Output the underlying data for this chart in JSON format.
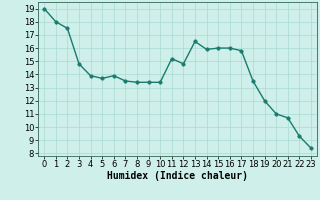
{
  "x": [
    0,
    1,
    2,
    3,
    4,
    5,
    6,
    7,
    8,
    9,
    10,
    11,
    12,
    13,
    14,
    15,
    16,
    17,
    18,
    19,
    20,
    21,
    22,
    23
  ],
  "y": [
    19.0,
    18.0,
    17.5,
    14.8,
    13.9,
    13.7,
    13.9,
    13.5,
    13.4,
    13.4,
    13.4,
    15.2,
    14.8,
    16.5,
    15.9,
    16.0,
    16.0,
    15.8,
    13.5,
    12.0,
    11.0,
    10.7,
    9.3,
    8.4
  ],
  "line_color": "#1a7a6e",
  "marker_color": "#1a7a6e",
  "bg_color": "#cff0ea",
  "grid_color": "#b0ddd6",
  "xlabel": "Humidex (Indice chaleur)",
  "xlabel_fontsize": 7,
  "ylim_min": 7.8,
  "ylim_max": 19.5,
  "xlim_min": -0.5,
  "xlim_max": 23.5,
  "yticks": [
    8,
    9,
    10,
    11,
    12,
    13,
    14,
    15,
    16,
    17,
    18,
    19
  ],
  "xticks": [
    0,
    1,
    2,
    3,
    4,
    5,
    6,
    7,
    8,
    9,
    10,
    11,
    12,
    13,
    14,
    15,
    16,
    17,
    18,
    19,
    20,
    21,
    22,
    23
  ],
  "tick_fontsize": 6,
  "line_width": 1.0,
  "marker_size": 2.5
}
